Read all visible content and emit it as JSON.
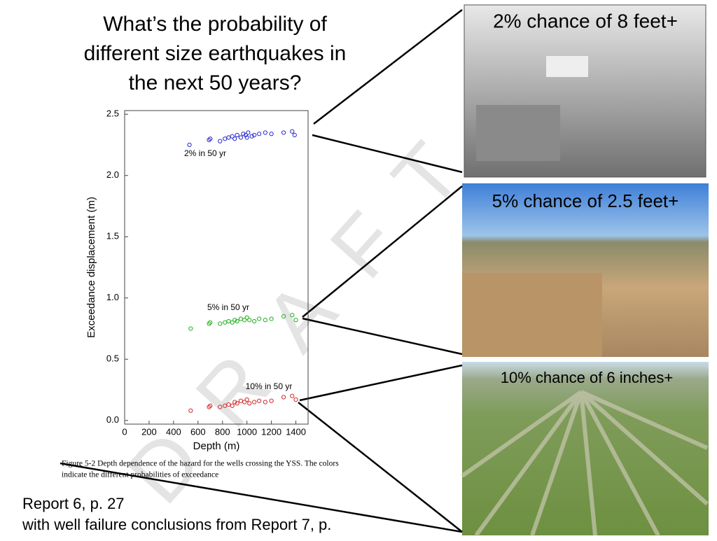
{
  "slide": {
    "title_lines": [
      "What’s the probability of",
      "different size earthquakes in",
      "the next 50 years?"
    ],
    "photo_captions": [
      "2% chance of 8 feet+",
      "5% chance of 2.5 feet+",
      "10% chance of 6 inches+"
    ],
    "figure_caption_lines": [
      "Figure 5-2 Depth dependence of the hazard for the wells crossing the YSS. The colors",
      "indicate the different probabilities of exceedance"
    ],
    "source_lines": [
      "Report 6, p. 27",
      " with well failure conclusions from Report 7, p."
    ],
    "watermark": "DRAFT"
  },
  "chart_data": {
    "type": "scatter",
    "x_label": "Depth (m)",
    "y_label": "Exceedance displacement (m)",
    "xlim": [
      0,
      1500
    ],
    "ylim": [
      -0.03,
      2.53
    ],
    "xticks": [
      0,
      200,
      400,
      600,
      800,
      1000,
      1200,
      1400
    ],
    "yticks": [
      {
        "value": 0,
        "label": "0.0"
      },
      0.5,
      {
        "value": 1,
        "label": "1.0"
      },
      1.5,
      {
        "value": 2,
        "label": "2.0"
      },
      2.5
    ],
    "series": [
      {
        "name": "2% in 50 yr",
        "color": "#2a2ad0",
        "x": [
          530,
          690,
          700,
          780,
          820,
          850,
          880,
          900,
          920,
          950,
          970,
          990,
          1000,
          1010,
          1040,
          1060,
          1100,
          1150,
          1200,
          1300,
          1370,
          1390
        ],
        "values": [
          2.25,
          2.29,
          2.3,
          2.28,
          2.3,
          2.31,
          2.32,
          2.3,
          2.33,
          2.31,
          2.34,
          2.33,
          2.31,
          2.35,
          2.32,
          2.33,
          2.34,
          2.35,
          2.34,
          2.35,
          2.36,
          2.33
        ]
      },
      {
        "name": "5% in 50 yr",
        "color": "#22b022",
        "x": [
          540,
          690,
          700,
          780,
          820,
          850,
          880,
          900,
          920,
          950,
          980,
          1000,
          1020,
          1060,
          1100,
          1150,
          1200,
          1300,
          1370,
          1400
        ],
        "values": [
          0.75,
          0.79,
          0.8,
          0.79,
          0.8,
          0.81,
          0.8,
          0.82,
          0.81,
          0.83,
          0.82,
          0.84,
          0.82,
          0.81,
          0.83,
          0.82,
          0.83,
          0.85,
          0.86,
          0.82
        ]
      },
      {
        "name": "10% in 50 yr",
        "color": "#d02a2a",
        "x": [
          540,
          690,
          700,
          780,
          820,
          850,
          880,
          900,
          920,
          950,
          980,
          1000,
          1020,
          1060,
          1100,
          1150,
          1200,
          1300,
          1370,
          1400
        ],
        "values": [
          0.08,
          0.11,
          0.12,
          0.11,
          0.12,
          0.13,
          0.12,
          0.15,
          0.14,
          0.16,
          0.15,
          0.17,
          0.14,
          0.15,
          0.16,
          0.15,
          0.16,
          0.19,
          0.2,
          0.17
        ]
      }
    ]
  }
}
